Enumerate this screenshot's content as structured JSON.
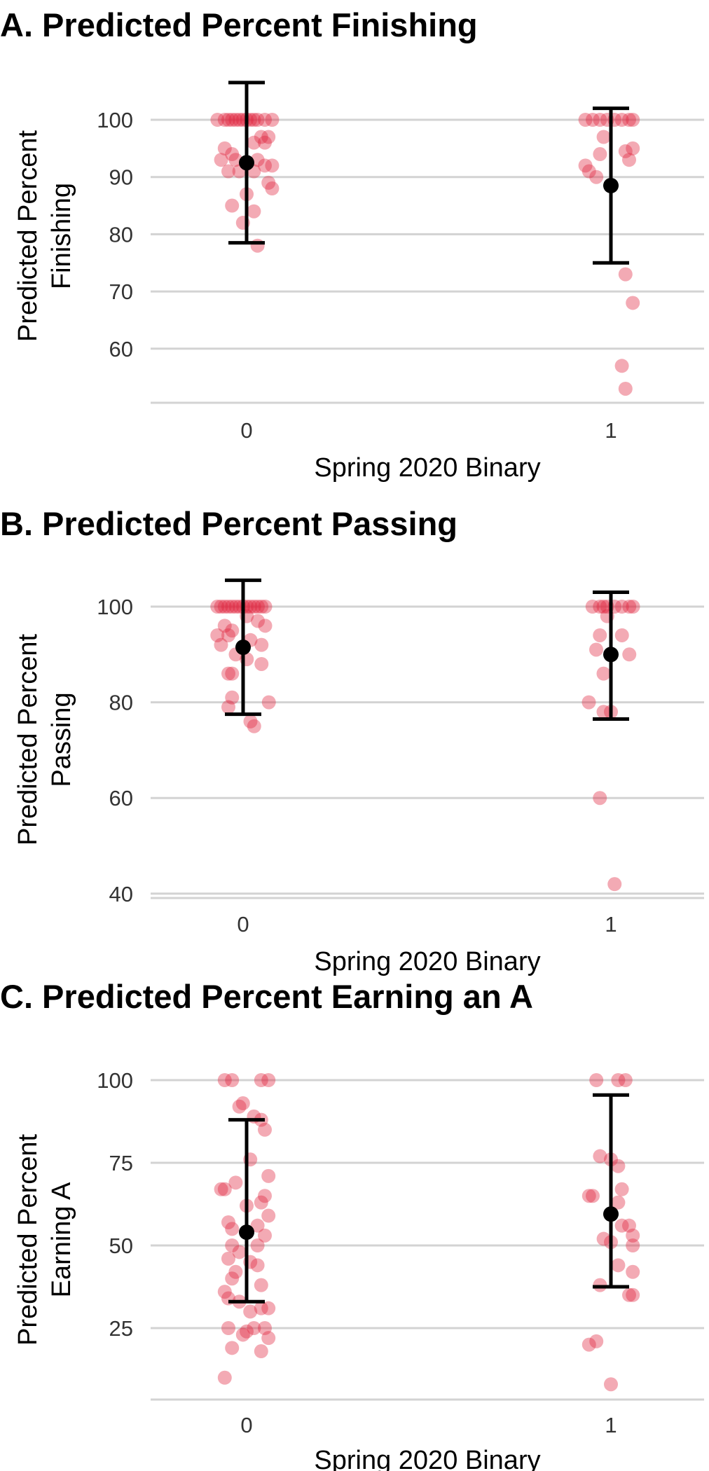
{
  "chart_data": [
    {
      "type": "scatter",
      "title": "A. Predicted Percent Finishing",
      "xlabel": "Spring 2020 Binary",
      "ylabel": [
        "Predicted Percent",
        "Finishing"
      ],
      "x_categories": [
        "0",
        "1"
      ],
      "yticks": [
        60,
        70,
        80,
        90,
        100
      ],
      "ylim": [
        50,
        107
      ],
      "grid": "horizontal",
      "point_color": "#e0203a",
      "summary_color": "#000000",
      "summary": [
        {
          "x": "0",
          "mean": 92.5,
          "lower": 78.5,
          "upper": 106.5
        },
        {
          "x": "1",
          "mean": 88.5,
          "lower": 75.0,
          "upper": 102.0
        }
      ],
      "points": [
        {
          "x": -0.08,
          "y": 100
        },
        {
          "x": -0.06,
          "y": 100
        },
        {
          "x": -0.05,
          "y": 100
        },
        {
          "x": -0.04,
          "y": 100
        },
        {
          "x": -0.03,
          "y": 100
        },
        {
          "x": -0.02,
          "y": 100
        },
        {
          "x": -0.01,
          "y": 100
        },
        {
          "x": 0.0,
          "y": 100
        },
        {
          "x": 0.01,
          "y": 100
        },
        {
          "x": 0.02,
          "y": 100
        },
        {
          "x": 0.03,
          "y": 100
        },
        {
          "x": 0.05,
          "y": 100
        },
        {
          "x": 0.07,
          "y": 100
        },
        {
          "x": -0.06,
          "y": 95
        },
        {
          "x": -0.04,
          "y": 94
        },
        {
          "x": -0.07,
          "y": 93
        },
        {
          "x": 0.04,
          "y": 97
        },
        {
          "x": 0.06,
          "y": 97
        },
        {
          "x": 0.02,
          "y": 96
        },
        {
          "x": 0.05,
          "y": 96
        },
        {
          "x": -0.03,
          "y": 93
        },
        {
          "x": 0.03,
          "y": 93
        },
        {
          "x": 0.05,
          "y": 92
        },
        {
          "x": 0.07,
          "y": 92
        },
        {
          "x": -0.05,
          "y": 91
        },
        {
          "x": -0.02,
          "y": 91
        },
        {
          "x": 0.02,
          "y": 91
        },
        {
          "x": 0.06,
          "y": 89
        },
        {
          "x": 0.07,
          "y": 88
        },
        {
          "x": 0.0,
          "y": 87
        },
        {
          "x": -0.04,
          "y": 85
        },
        {
          "x": 0.02,
          "y": 84
        },
        {
          "x": -0.01,
          "y": 82
        },
        {
          "x": 0.03,
          "y": 78
        },
        {
          "x": 0.93,
          "y": 100
        },
        {
          "x": 0.95,
          "y": 100
        },
        {
          "x": 0.97,
          "y": 100
        },
        {
          "x": 0.99,
          "y": 100
        },
        {
          "x": 1.01,
          "y": 100
        },
        {
          "x": 1.03,
          "y": 100
        },
        {
          "x": 1.05,
          "y": 100
        },
        {
          "x": 1.06,
          "y": 100
        },
        {
          "x": 0.98,
          "y": 97
        },
        {
          "x": 0.97,
          "y": 94
        },
        {
          "x": 1.04,
          "y": 94.5
        },
        {
          "x": 1.06,
          "y": 95
        },
        {
          "x": 1.05,
          "y": 93
        },
        {
          "x": 0.93,
          "y": 92
        },
        {
          "x": 0.94,
          "y": 91
        },
        {
          "x": 0.96,
          "y": 90
        },
        {
          "x": 1.04,
          "y": 73
        },
        {
          "x": 1.06,
          "y": 68
        },
        {
          "x": 1.03,
          "y": 57
        },
        {
          "x": 1.04,
          "y": 53
        }
      ]
    },
    {
      "type": "scatter",
      "title": "B. Predicted Percent Passing",
      "xlabel": "Spring 2020 Binary",
      "ylabel": [
        "Predicted Percent",
        "Passing"
      ],
      "x_categories": [
        "0",
        "1"
      ],
      "yticks": [
        40,
        60,
        80,
        100
      ],
      "ylim": [
        40,
        106
      ],
      "grid": "horizontal",
      "point_color": "#e0203a",
      "summary_color": "#000000",
      "summary": [
        {
          "x": "0",
          "mean": 91.5,
          "lower": 77.5,
          "upper": 105.5
        },
        {
          "x": "1",
          "mean": 90.0,
          "lower": 76.5,
          "upper": 103.0
        }
      ],
      "points": [
        {
          "x": -0.07,
          "y": 100
        },
        {
          "x": -0.06,
          "y": 100
        },
        {
          "x": -0.05,
          "y": 100
        },
        {
          "x": -0.04,
          "y": 100
        },
        {
          "x": -0.03,
          "y": 100
        },
        {
          "x": -0.02,
          "y": 100
        },
        {
          "x": -0.01,
          "y": 100
        },
        {
          "x": 0.0,
          "y": 100
        },
        {
          "x": 0.01,
          "y": 100
        },
        {
          "x": 0.02,
          "y": 100
        },
        {
          "x": 0.03,
          "y": 100
        },
        {
          "x": 0.04,
          "y": 100
        },
        {
          "x": 0.05,
          "y": 100
        },
        {
          "x": 0.06,
          "y": 100
        },
        {
          "x": -0.05,
          "y": 96
        },
        {
          "x": -0.03,
          "y": 95
        },
        {
          "x": 0.01,
          "y": 98
        },
        {
          "x": 0.04,
          "y": 97
        },
        {
          "x": 0.06,
          "y": 96
        },
        {
          "x": -0.07,
          "y": 94
        },
        {
          "x": -0.04,
          "y": 94
        },
        {
          "x": -0.06,
          "y": 92
        },
        {
          "x": 0.02,
          "y": 93
        },
        {
          "x": 0.05,
          "y": 92
        },
        {
          "x": -0.02,
          "y": 90
        },
        {
          "x": 0.01,
          "y": 89
        },
        {
          "x": 0.05,
          "y": 88
        },
        {
          "x": -0.03,
          "y": 86
        },
        {
          "x": -0.04,
          "y": 86
        },
        {
          "x": -0.03,
          "y": 81
        },
        {
          "x": 0.07,
          "y": 80
        },
        {
          "x": -0.04,
          "y": 79
        },
        {
          "x": 0.02,
          "y": 76
        },
        {
          "x": 0.03,
          "y": 75
        },
        {
          "x": 0.95,
          "y": 100
        },
        {
          "x": 0.97,
          "y": 100
        },
        {
          "x": 0.98,
          "y": 100
        },
        {
          "x": 0.99,
          "y": 100
        },
        {
          "x": 1.01,
          "y": 100
        },
        {
          "x": 1.03,
          "y": 100
        },
        {
          "x": 1.05,
          "y": 100
        },
        {
          "x": 1.06,
          "y": 100
        },
        {
          "x": 0.99,
          "y": 98
        },
        {
          "x": 0.97,
          "y": 94
        },
        {
          "x": 1.03,
          "y": 94
        },
        {
          "x": 0.96,
          "y": 91
        },
        {
          "x": 1.05,
          "y": 90
        },
        {
          "x": 0.98,
          "y": 86
        },
        {
          "x": 0.94,
          "y": 80
        },
        {
          "x": 0.98,
          "y": 78
        },
        {
          "x": 1.0,
          "y": 78
        },
        {
          "x": 0.97,
          "y": 60
        },
        {
          "x": 1.01,
          "y": 42
        }
      ]
    },
    {
      "type": "scatter",
      "title": "C. Predicted Percent Earning an A",
      "xlabel": "Spring 2020 Binary",
      "ylabel": [
        "Predicted Percent",
        "Earning A"
      ],
      "x_categories": [
        "0",
        "1"
      ],
      "yticks": [
        25,
        50,
        75,
        100
      ],
      "ylim": [
        3,
        106
      ],
      "grid": "horizontal",
      "point_color": "#e0203a",
      "summary_color": "#000000",
      "summary": [
        {
          "x": "0",
          "mean": 54.0,
          "lower": 33.0,
          "upper": 88.0
        },
        {
          "x": "1",
          "mean": 59.5,
          "lower": 37.5,
          "upper": 95.5
        }
      ],
      "points": [
        {
          "x": -0.06,
          "y": 100
        },
        {
          "x": -0.04,
          "y": 100
        },
        {
          "x": 0.04,
          "y": 100
        },
        {
          "x": 0.06,
          "y": 100
        },
        {
          "x": -0.01,
          "y": 93
        },
        {
          "x": -0.02,
          "y": 92
        },
        {
          "x": 0.02,
          "y": 89
        },
        {
          "x": 0.04,
          "y": 88
        },
        {
          "x": 0.05,
          "y": 85
        },
        {
          "x": 0.01,
          "y": 76
        },
        {
          "x": 0.06,
          "y": 71
        },
        {
          "x": -0.03,
          "y": 69
        },
        {
          "x": -0.06,
          "y": 67
        },
        {
          "x": -0.07,
          "y": 67
        },
        {
          "x": 0.05,
          "y": 65
        },
        {
          "x": 0.0,
          "y": 62
        },
        {
          "x": 0.04,
          "y": 63
        },
        {
          "x": 0.06,
          "y": 59
        },
        {
          "x": -0.05,
          "y": 57
        },
        {
          "x": 0.03,
          "y": 56
        },
        {
          "x": -0.04,
          "y": 55
        },
        {
          "x": 0.05,
          "y": 53
        },
        {
          "x": -0.04,
          "y": 50
        },
        {
          "x": 0.03,
          "y": 50
        },
        {
          "x": -0.02,
          "y": 48
        },
        {
          "x": -0.05,
          "y": 46
        },
        {
          "x": 0.01,
          "y": 45
        },
        {
          "x": 0.03,
          "y": 44
        },
        {
          "x": -0.03,
          "y": 42
        },
        {
          "x": -0.04,
          "y": 40
        },
        {
          "x": 0.04,
          "y": 38
        },
        {
          "x": -0.06,
          "y": 36
        },
        {
          "x": -0.05,
          "y": 34
        },
        {
          "x": -0.02,
          "y": 33
        },
        {
          "x": 0.04,
          "y": 31
        },
        {
          "x": 0.06,
          "y": 31
        },
        {
          "x": 0.01,
          "y": 30
        },
        {
          "x": -0.05,
          "y": 25
        },
        {
          "x": 0.02,
          "y": 25
        },
        {
          "x": 0.05,
          "y": 25
        },
        {
          "x": 0.0,
          "y": 24
        },
        {
          "x": -0.01,
          "y": 23
        },
        {
          "x": 0.06,
          "y": 22
        },
        {
          "x": -0.04,
          "y": 19
        },
        {
          "x": 0.04,
          "y": 18
        },
        {
          "x": -0.06,
          "y": 10
        },
        {
          "x": 0.96,
          "y": 100
        },
        {
          "x": 1.02,
          "y": 100
        },
        {
          "x": 1.04,
          "y": 100
        },
        {
          "x": 0.97,
          "y": 77
        },
        {
          "x": 1.0,
          "y": 76
        },
        {
          "x": 1.02,
          "y": 74
        },
        {
          "x": 1.03,
          "y": 67
        },
        {
          "x": 0.94,
          "y": 65
        },
        {
          "x": 0.95,
          "y": 65
        },
        {
          "x": 1.02,
          "y": 63
        },
        {
          "x": 1.03,
          "y": 56
        },
        {
          "x": 1.05,
          "y": 56
        },
        {
          "x": 1.06,
          "y": 53
        },
        {
          "x": 0.98,
          "y": 52
        },
        {
          "x": 1.0,
          "y": 51
        },
        {
          "x": 1.06,
          "y": 50
        },
        {
          "x": 1.02,
          "y": 44
        },
        {
          "x": 1.06,
          "y": 42
        },
        {
          "x": 0.97,
          "y": 38
        },
        {
          "x": 1.05,
          "y": 35
        },
        {
          "x": 1.06,
          "y": 35
        },
        {
          "x": 0.96,
          "y": 21
        },
        {
          "x": 0.94,
          "y": 20
        },
        {
          "x": 1.0,
          "y": 8
        }
      ]
    }
  ]
}
